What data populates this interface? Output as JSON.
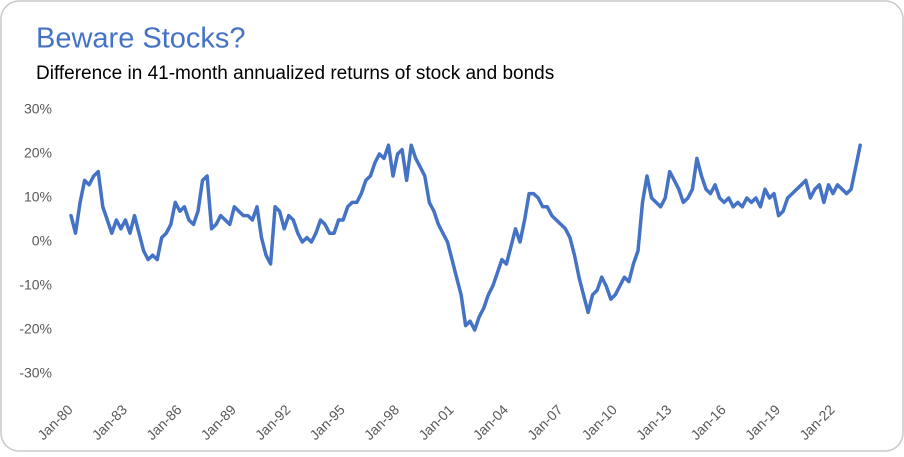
{
  "chart_data": {
    "type": "line",
    "title": "Beware Stocks?",
    "subtitle": "Difference in 41-month annualized returns of stock and bonds",
    "categories": [
      "Jan-80",
      null,
      null,
      null,
      null,
      null,
      null,
      null,
      null,
      null,
      null,
      null,
      "Jan-83",
      null,
      null,
      null,
      null,
      null,
      null,
      null,
      null,
      null,
      null,
      null,
      "Jan-86",
      null,
      null,
      null,
      null,
      null,
      null,
      null,
      null,
      null,
      null,
      null,
      "Jan-89",
      null,
      null,
      null,
      null,
      null,
      null,
      null,
      null,
      null,
      null,
      null,
      "Jan-92",
      null,
      null,
      null,
      null,
      null,
      null,
      null,
      null,
      null,
      null,
      null,
      "Jan-95",
      null,
      null,
      null,
      null,
      null,
      null,
      null,
      null,
      null,
      null,
      null,
      "Jan-98",
      null,
      null,
      null,
      null,
      null,
      null,
      null,
      null,
      null,
      null,
      null,
      "Jan-01",
      null,
      null,
      null,
      null,
      null,
      null,
      null,
      null,
      null,
      null,
      null,
      "Jan-04",
      null,
      null,
      null,
      null,
      null,
      null,
      null,
      null,
      null,
      null,
      null,
      "Jan-07",
      null,
      null,
      null,
      null,
      null,
      null,
      null,
      null,
      null,
      null,
      null,
      "Jan-10",
      null,
      null,
      null,
      null,
      null,
      null,
      null,
      null,
      null,
      null,
      null,
      "Jan-13",
      null,
      null,
      null,
      null,
      null,
      null,
      null,
      null,
      null,
      null,
      null,
      "Jan-16",
      null,
      null,
      null,
      null,
      null,
      null,
      null,
      null,
      null,
      null,
      null,
      "Jan-19",
      null,
      null,
      null,
      null,
      null,
      null,
      null,
      null,
      null,
      null,
      null,
      "Jan-22",
      null,
      null,
      null,
      null,
      null,
      null
    ],
    "series": [
      {
        "color": "#4472c4",
        "values": [
          6,
          2,
          9,
          14,
          13,
          15,
          16,
          8,
          5,
          2,
          5,
          3,
          5,
          2,
          6,
          2,
          -2,
          -4,
          -3,
          -4,
          1,
          2,
          4,
          9,
          7,
          8,
          5,
          4,
          7,
          14,
          15,
          3,
          4,
          6,
          5,
          4,
          8,
          7,
          6,
          6,
          5,
          8,
          1,
          -3,
          -5,
          8,
          7,
          3,
          6,
          5,
          2,
          0,
          1,
          0,
          2,
          5,
          4,
          2,
          2,
          5,
          5,
          8,
          9,
          9,
          11,
          14,
          15,
          18,
          20,
          19,
          22,
          15,
          20,
          21,
          14,
          22,
          19,
          17,
          15,
          9,
          7,
          4,
          2,
          0,
          -4,
          -8,
          -12,
          -19,
          -18,
          -20,
          -17,
          -15,
          -12,
          -10,
          -7,
          -4,
          -5,
          -1,
          3,
          0,
          5,
          11,
          11,
          10,
          8,
          8,
          6,
          5,
          4,
          3,
          1,
          -3,
          -8,
          -12,
          -16,
          -12,
          -11,
          -8,
          -10,
          -13,
          -12,
          -10,
          -8,
          -9,
          -5,
          -2,
          9,
          15,
          10,
          9,
          8,
          10,
          16,
          14,
          12,
          9,
          10,
          12,
          19,
          15,
          12,
          11,
          13,
          10,
          9,
          10,
          8,
          9,
          8,
          10,
          9,
          10,
          8,
          12,
          10,
          11,
          6,
          7,
          10,
          11,
          12,
          13,
          14,
          10,
          12,
          13,
          9,
          13,
          11,
          13,
          12,
          11,
          12,
          17,
          22
        ]
      }
    ],
    "ylim": [
      -30,
      30
    ],
    "yticks": [
      {
        "value": -30,
        "label": "-30%"
      },
      {
        "value": -20,
        "label": "-20%"
      },
      {
        "value": -10,
        "label": "-10%"
      },
      {
        "value": 0,
        "label": "0%"
      },
      {
        "value": 10,
        "label": "10%"
      },
      {
        "value": 20,
        "label": "20%"
      },
      {
        "value": 30,
        "label": "30%"
      }
    ],
    "grid": false
  }
}
